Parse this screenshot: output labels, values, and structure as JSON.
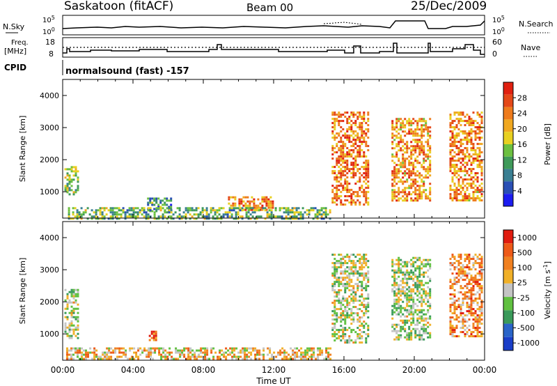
{
  "header": {
    "station": "Saskatoon (fitACF)",
    "beam": "Beam 00",
    "date": "25/Dec/2009"
  },
  "labels": {
    "nsky": "N.Sky",
    "nsearch": "N.Search",
    "freq": "Freq.",
    "freq_unit": "[MHz]",
    "nave": "Nave",
    "cpid": "CPID",
    "cpid_value": "normalsound (fast) -157",
    "nsky_top": "10^5",
    "nsky_bottom": "10^0",
    "freq_top": "18",
    "freq_bottom": "8",
    "nave_top": "60",
    "nave_bottom": "0"
  },
  "chart_data": [
    {
      "type": "heatmap",
      "name": "power",
      "ylabel": "Slant Range [km]",
      "ylim": [
        180,
        4500
      ],
      "yticks": [
        1000,
        2000,
        3000,
        4000
      ],
      "xlim": [
        0,
        24
      ],
      "colorbar": {
        "label": "Power [dB]",
        "ticks": [
          "4",
          "8",
          "12",
          "16",
          "20",
          "24",
          "28"
        ],
        "colors": [
          "#1c1cf0",
          "#2a4fb4",
          "#3a7f92",
          "#3f9a5a",
          "#6cc040",
          "#e8d020",
          "#f0a820",
          "#ee7b1c",
          "#e44818",
          "#e02010"
        ]
      },
      "patches": [
        {
          "t0": 0.1,
          "t1": 0.9,
          "r0": 900,
          "r1": 1800,
          "level": 0.45
        },
        {
          "t0": 4.8,
          "t1": 6.2,
          "r0": 380,
          "r1": 820,
          "level": 0.3
        },
        {
          "t0": 9.4,
          "t1": 11.9,
          "r0": 420,
          "r1": 860,
          "level": 0.75
        },
        {
          "t0": 0.3,
          "t1": 15.2,
          "r0": 190,
          "r1": 520,
          "level": 0.4
        },
        {
          "t0": 15.3,
          "t1": 17.4,
          "r0": 600,
          "r1": 3500,
          "level": 0.75
        },
        {
          "t0": 18.7,
          "t1": 20.9,
          "r0": 700,
          "r1": 3300,
          "level": 0.7
        },
        {
          "t0": 22.0,
          "t1": 23.9,
          "r0": 700,
          "r1": 3500,
          "level": 0.72
        }
      ]
    },
    {
      "type": "heatmap",
      "name": "velocity",
      "ylabel": "Slant Range [km]",
      "ylim": [
        180,
        4500
      ],
      "yticks": [
        1000,
        2000,
        3000,
        4000
      ],
      "xlim": [
        0,
        24
      ],
      "xticks": [
        "00:00",
        "04:00",
        "08:00",
        "12:00",
        "16:00",
        "20:00",
        "00:00"
      ],
      "xlabel": "Time UT",
      "colorbar": {
        "label": "Velocity [m s^-1]",
        "ticks": [
          "1000",
          "500",
          "100",
          "25",
          "-25",
          "-100",
          "-500",
          "-1000"
        ],
        "colors": [
          "#1a3ec8",
          "#2a64c8",
          "#3a9a5a",
          "#60c040",
          "#c4c4c4",
          "#f0b028",
          "#f08020",
          "#ee5a18",
          "#e01c10"
        ]
      },
      "patches": [
        {
          "t0": 0.1,
          "t1": 0.9,
          "r0": 900,
          "r1": 2400,
          "level": 0.45
        },
        {
          "t0": 4.9,
          "t1": 5.3,
          "r0": 800,
          "r1": 1100,
          "level": 0.85
        },
        {
          "t0": 0.2,
          "t1": 15.2,
          "r0": 190,
          "r1": 580,
          "level": 0.6
        },
        {
          "t0": 15.3,
          "t1": 17.4,
          "r0": 700,
          "r1": 3500,
          "level": 0.5
        },
        {
          "t0": 18.7,
          "t1": 20.9,
          "r0": 800,
          "r1": 3400,
          "level": 0.45
        },
        {
          "t0": 22.0,
          "t1": 23.9,
          "r0": 900,
          "r1": 3500,
          "level": 0.7
        }
      ]
    }
  ]
}
